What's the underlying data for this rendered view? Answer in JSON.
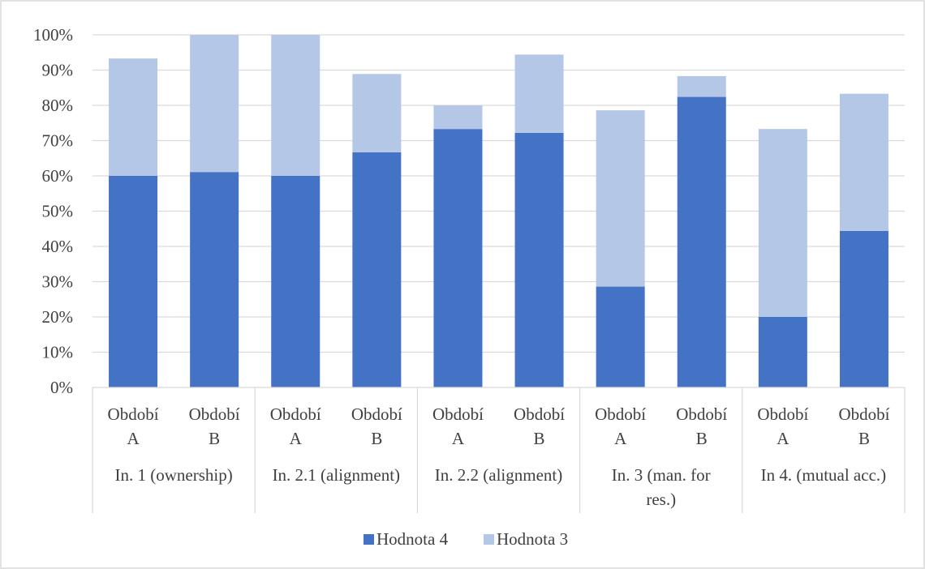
{
  "chart_data": {
    "type": "bar",
    "stacked": true,
    "title": "",
    "xlabel": "",
    "ylabel": "",
    "ylim": [
      0,
      100
    ],
    "y_ticks": [
      "0%",
      "10%",
      "20%",
      "30%",
      "40%",
      "50%",
      "60%",
      "70%",
      "80%",
      "90%",
      "100%"
    ],
    "groups": [
      {
        "label": "In. 1 (ownership)",
        "lines": [
          "In. 1 (ownership)"
        ]
      },
      {
        "label": "In. 2.1 (alignment)",
        "lines": [
          "In. 2.1 (alignment)"
        ]
      },
      {
        "label": "In. 2.2 (alignment)",
        "lines": [
          "In. 2.2 (alignment)"
        ]
      },
      {
        "label": "In. 3 (man. for res.)",
        "lines": [
          "In. 3 (man. for",
          "res.)"
        ]
      },
      {
        "label": "In 4. (mutual acc.)",
        "lines": [
          "In 4. (mutual acc.)"
        ]
      }
    ],
    "categories": [
      {
        "group": 0,
        "lines": [
          "Období",
          "A"
        ]
      },
      {
        "group": 0,
        "lines": [
          "Období",
          "B"
        ]
      },
      {
        "group": 1,
        "lines": [
          "Období",
          "A"
        ]
      },
      {
        "group": 1,
        "lines": [
          "Období",
          "B"
        ]
      },
      {
        "group": 2,
        "lines": [
          "Období",
          "A"
        ]
      },
      {
        "group": 2,
        "lines": [
          "Období",
          "B"
        ]
      },
      {
        "group": 3,
        "lines": [
          "Období",
          "A"
        ]
      },
      {
        "group": 3,
        "lines": [
          "Období",
          "B"
        ]
      },
      {
        "group": 4,
        "lines": [
          "Období",
          "A"
        ]
      },
      {
        "group": 4,
        "lines": [
          "Období",
          "B"
        ]
      }
    ],
    "series": [
      {
        "name": "Hodnota 4",
        "color": "#4472C4",
        "values": [
          60,
          61.1,
          60,
          66.7,
          73.3,
          72.2,
          28.6,
          82.4,
          20,
          44.4
        ]
      },
      {
        "name": "Hodnota 3",
        "color": "#B4C7E7",
        "values": [
          33.3,
          38.9,
          40,
          22.2,
          6.7,
          22.2,
          50,
          5.9,
          53.3,
          38.9
        ]
      }
    ],
    "grid": true,
    "legend": "bottom"
  }
}
